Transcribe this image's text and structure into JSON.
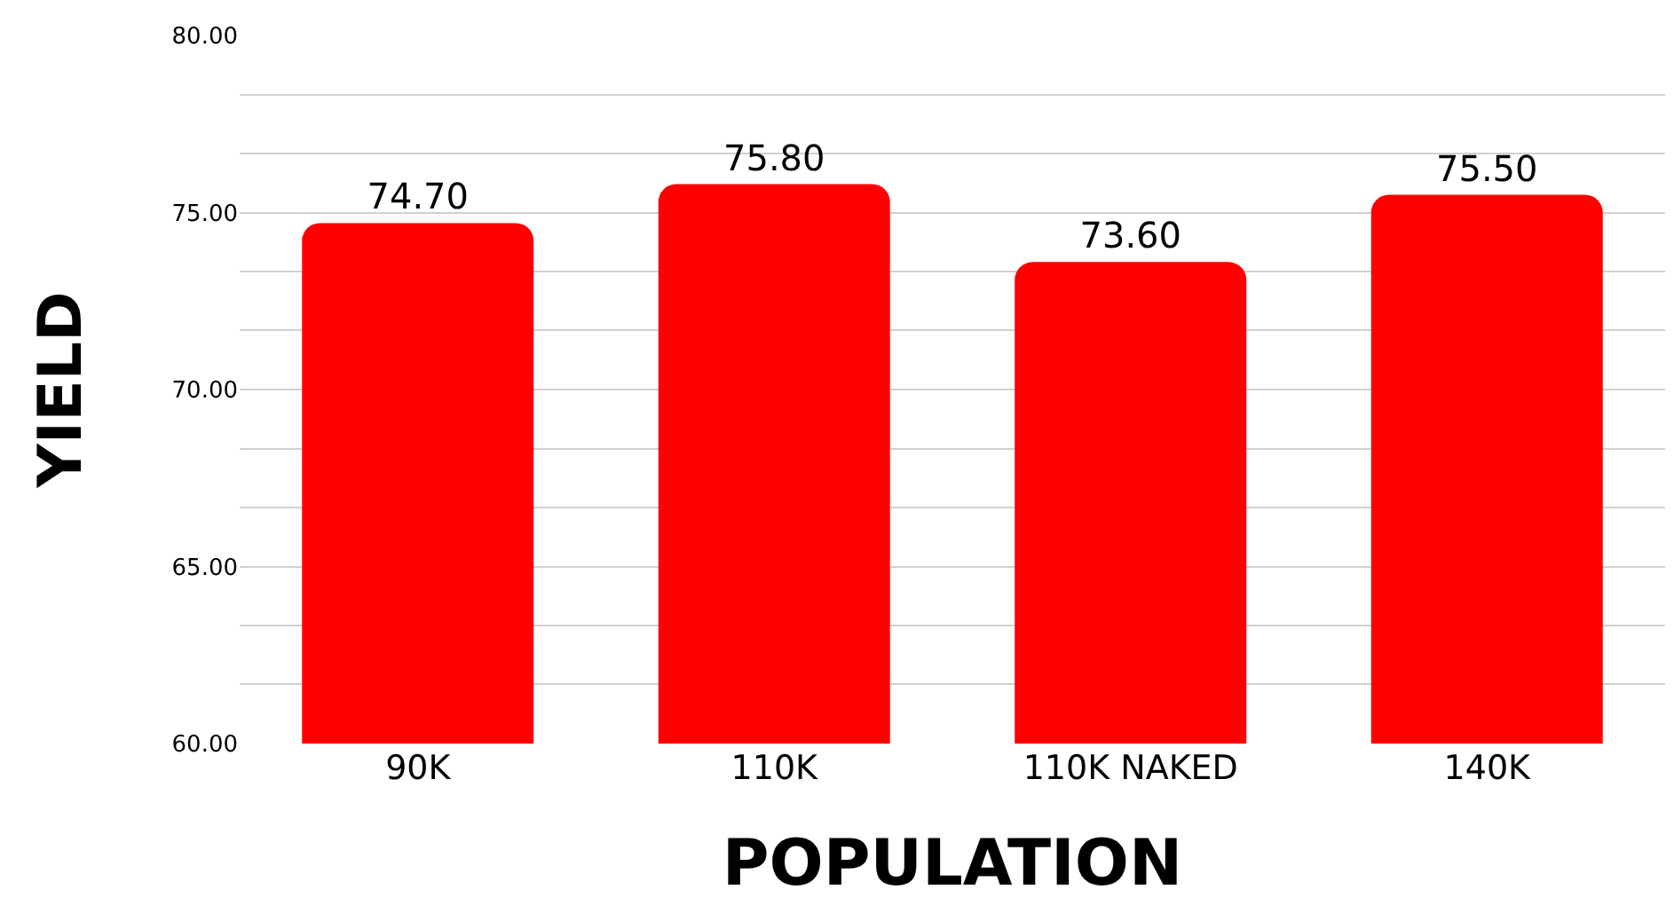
{
  "chart_data": {
    "type": "bar",
    "xlabel": "POPULATION",
    "ylabel": "YIELD",
    "categories": [
      "90K",
      "110K",
      "110K NAKED",
      "140K"
    ],
    "values": [
      74.7,
      75.8,
      73.6,
      75.5
    ],
    "value_labels": [
      "74.70",
      "75.80",
      "73.60",
      "75.50"
    ],
    "color": "#ff0000",
    "ylim": [
      60,
      80
    ],
    "yticks": [
      {
        "value": 60,
        "label": "60.00"
      },
      {
        "value": 61.67,
        "label": null
      },
      {
        "value": 63.33,
        "label": null
      },
      {
        "value": 65,
        "label": "65.00"
      },
      {
        "value": 66.67,
        "label": null
      },
      {
        "value": 68.33,
        "label": null
      },
      {
        "value": 70,
        "label": "70.00"
      },
      {
        "value": 71.67,
        "label": null
      },
      {
        "value": 73.33,
        "label": null
      },
      {
        "value": 75,
        "label": "75.00"
      },
      {
        "value": 76.67,
        "label": null
      },
      {
        "value": 78.33,
        "label": null
      },
      {
        "value": 80,
        "label": "80.00"
      }
    ],
    "grid": "y",
    "legend": false
  }
}
